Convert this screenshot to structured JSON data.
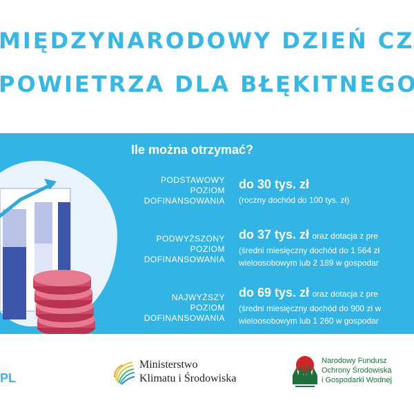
{
  "title": {
    "line1": "MIĘDZYNARODOWY DZIEŃ CZ",
    "line2": "POWIETRZA DLA BŁĘKITNEGO"
  },
  "panel": {
    "heading": "Ile można otrzymać?",
    "tiers": [
      {
        "label": [
          "PODSTAWOWY",
          "POZIOM",
          "DOFINANSOWANIA"
        ],
        "amount": "do 30 tys. zł",
        "amount_suffix": "",
        "notes": [
          "(roczny dochód do 100 tys. zł)"
        ]
      },
      {
        "label": [
          "PODWYŻSZONY",
          "POZIOM",
          "DOFINANSOWANIA"
        ],
        "amount": "do 37 tys. zł",
        "amount_suffix": "oraz dotacja z pre",
        "notes": [
          "(średni miesięczny dochód do 1 564 zł",
          "wieloosobowym lub 2 189 w gospodar"
        ]
      },
      {
        "label": [
          "NAJWYŻSZY",
          "POZIOM",
          "DOFINANSOWANIA"
        ],
        "amount": "do 69 tys. zł",
        "amount_suffix": "oraz dotacja z pre",
        "notes": [
          "(średni miesięczny dochód do 900 zł w",
          "wieloosobowym lub 1 260 w gospodar"
        ]
      }
    ]
  },
  "footer": {
    "site_suffix": "PL",
    "ministry": [
      "Ministerstwo",
      "Klimatu i Środowiska"
    ],
    "fund": [
      "Narodowy Fundusz",
      "Ochrony Środowiska",
      "i Gospodarki Wodnej"
    ]
  },
  "colors": {
    "accent": "#35b8e8",
    "band": "#32b4e4",
    "bar_dark": "#3d55a8",
    "bar_light": "#b9c3e6",
    "coin": "#d24a68",
    "fund_green": "#1e6f3c",
    "fund_red": "#d2232a"
  },
  "icons": [
    "bar-chart-growth-icon",
    "coin-stack-icon",
    "ministry-leaf-logo",
    "nfos-logo"
  ]
}
